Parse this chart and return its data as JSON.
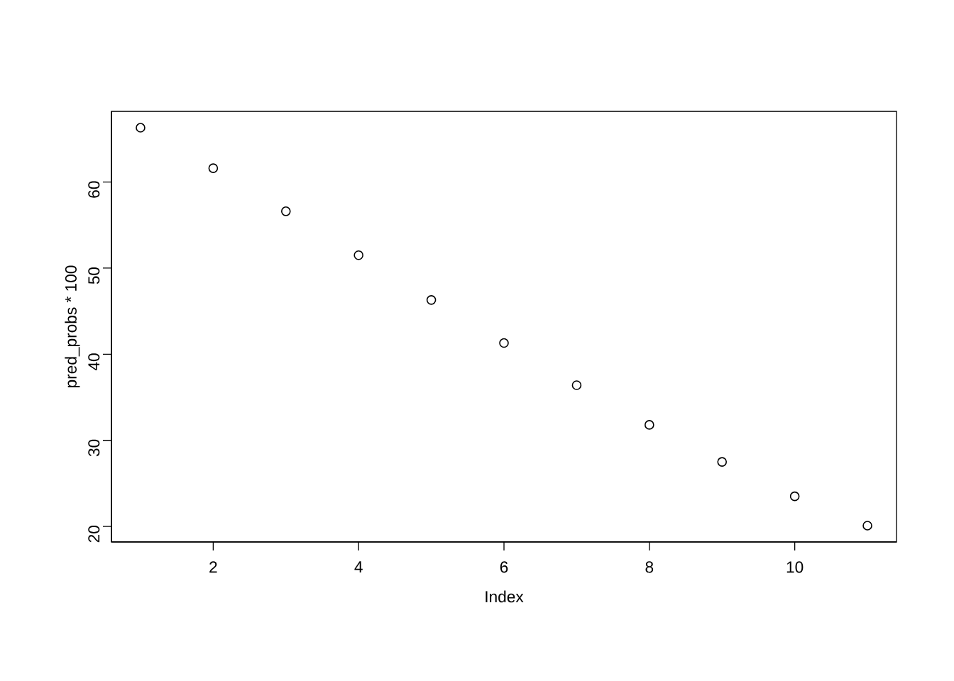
{
  "chart_data": {
    "type": "scatter",
    "xlabel": "Index",
    "ylabel": "pred_probs * 100",
    "x": [
      1,
      2,
      3,
      4,
      5,
      6,
      7,
      8,
      9,
      10,
      11
    ],
    "values": [
      66.3,
      61.6,
      56.6,
      51.5,
      46.3,
      41.3,
      36.4,
      31.8,
      27.5,
      23.5,
      20.1
    ],
    "color": "#000000",
    "marker": "circle",
    "xlim": [
      0.6,
      11.4
    ],
    "ylim": [
      18.2,
      68.2
    ],
    "xticks": [
      2,
      4,
      6,
      8,
      10
    ],
    "yticks": [
      20,
      30,
      40,
      50,
      60
    ],
    "grid": false
  }
}
